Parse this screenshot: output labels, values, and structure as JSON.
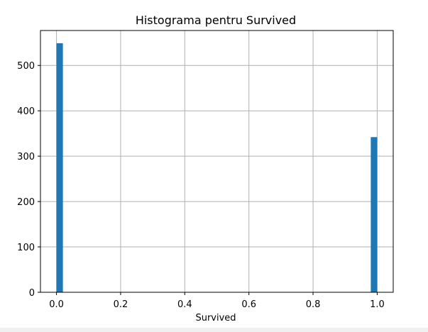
{
  "chart_data": {
    "type": "bar",
    "title": "Histograma pentru Survived",
    "xlabel": "Survived",
    "ylabel": "",
    "xlim": [
      -0.05,
      1.05
    ],
    "ylim": [
      0,
      577
    ],
    "grid": true,
    "bin_width": 0.02,
    "bins": [
      {
        "x0": 0.0,
        "x1": 0.02,
        "count": 549
      },
      {
        "x0": 0.98,
        "x1": 1.0,
        "count": 342
      }
    ],
    "x_ticks": [
      0.0,
      0.2,
      0.4,
      0.6,
      0.8,
      1.0
    ],
    "x_tick_labels": [
      "0.0",
      "0.2",
      "0.4",
      "0.6",
      "0.8",
      "1.0"
    ],
    "y_ticks": [
      0,
      100,
      200,
      300,
      400,
      500
    ],
    "y_tick_labels": [
      "0",
      "100",
      "200",
      "300",
      "400",
      "500"
    ],
    "colors": {
      "bar": "#1f77b4",
      "grid": "#b0b0b0",
      "axis": "#000000"
    }
  }
}
